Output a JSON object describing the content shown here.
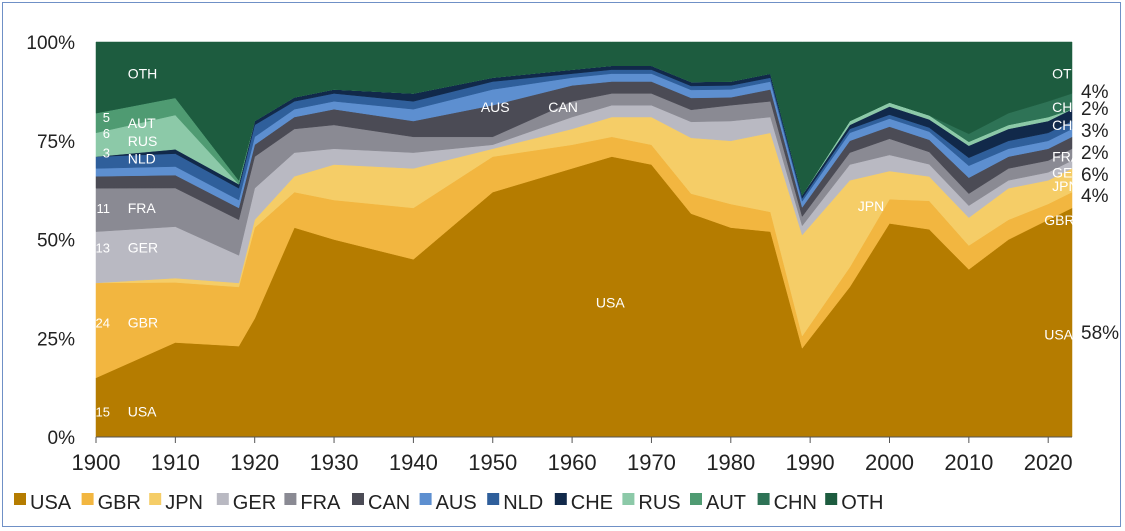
{
  "chart_data": {
    "type": "area",
    "stacked": "percent",
    "title": "",
    "xlabel": "",
    "ylabel": "",
    "xlim": [
      1900,
      2023
    ],
    "ylim": [
      0,
      100
    ],
    "x_ticks": [
      1900,
      1910,
      1920,
      1930,
      1940,
      1950,
      1960,
      1970,
      1980,
      1990,
      2000,
      2010,
      2020
    ],
    "y_ticks": [
      "0%",
      "25%",
      "50%",
      "75%",
      "100%"
    ],
    "grid": false,
    "legend_position": "bottom",
    "x": [
      1900,
      1910,
      1918,
      1920,
      1925,
      1930,
      1940,
      1950,
      1960,
      1965,
      1970,
      1975,
      1980,
      1985,
      1989,
      1995,
      2000,
      2005,
      2010,
      2015,
      2020,
      2023
    ],
    "series": [
      {
        "name": "USA",
        "color": "#b57c00",
        "values": [
          15,
          22,
          23,
          30,
          53,
          50,
          45,
          62,
          68,
          71,
          69,
          56,
          53,
          52,
          29,
          38,
          53,
          51,
          42,
          50,
          55,
          58
        ]
      },
      {
        "name": "GBR",
        "color": "#f2b640",
        "values": [
          24,
          14,
          15,
          23,
          9,
          10,
          13,
          9,
          6,
          5,
          5,
          5,
          6,
          5,
          4,
          5,
          6,
          7,
          6,
          5,
          4,
          4
        ]
      },
      {
        "name": "JPN",
        "color": "#f5cd67",
        "values": [
          0,
          1,
          1,
          2,
          4,
          9,
          10,
          2,
          4,
          5,
          7,
          14,
          16,
          20,
          33,
          22,
          7,
          6,
          7,
          8,
          6,
          6
        ]
      },
      {
        "name": "GER",
        "color": "#b9b9c2",
        "values": [
          13,
          12,
          7,
          8,
          6,
          4,
          4,
          1,
          3,
          3,
          3,
          4,
          5,
          4,
          3,
          4,
          4,
          3,
          3,
          2,
          2,
          2
        ]
      },
      {
        "name": "FRA",
        "color": "#8a8a93",
        "values": [
          11,
          9,
          9,
          8,
          6,
          6,
          4,
          2,
          4,
          3,
          3,
          3,
          4,
          4,
          3,
          3,
          4,
          3,
          3,
          3,
          3,
          3
        ]
      },
      {
        "name": "CAN",
        "color": "#4b4b55",
        "values": [
          3,
          3,
          3,
          3,
          3,
          4,
          4,
          8,
          4,
          3,
          3,
          3,
          2,
          3,
          3,
          3,
          3,
          3,
          4,
          3,
          3,
          3
        ]
      },
      {
        "name": "AUS",
        "color": "#5d8fd0",
        "values": [
          2,
          2,
          2,
          2,
          2,
          2,
          3,
          4,
          2,
          2,
          2,
          2,
          2,
          2,
          2,
          2,
          2,
          2,
          3,
          2,
          2,
          2
        ]
      },
      {
        "name": "NLD",
        "color": "#2f5f9b",
        "values": [
          3,
          3,
          3,
          3,
          2,
          2,
          2,
          2,
          1,
          1,
          1,
          1,
          1,
          1,
          1,
          1,
          1,
          1,
          2,
          2,
          2,
          2
        ]
      },
      {
        "name": "CHE",
        "color": "#11294a",
        "values": [
          0,
          1,
          1,
          1,
          1,
          1,
          2,
          1,
          1,
          1,
          1,
          1,
          1,
          1,
          1,
          1,
          2,
          2,
          3,
          3,
          3,
          3
        ]
      },
      {
        "name": "RUS",
        "color": "#8cc9a8",
        "values": [
          6,
          8,
          0,
          0,
          0,
          0,
          0,
          0,
          0,
          0,
          0,
          0,
          0,
          0,
          0,
          1,
          1,
          1,
          1,
          1,
          1,
          0
        ]
      },
      {
        "name": "AUT",
        "color": "#4f9b72",
        "values": [
          5,
          4,
          1,
          0,
          0,
          0,
          0,
          0,
          0,
          0,
          0,
          0,
          0,
          0,
          0,
          0,
          0,
          0,
          0,
          0,
          0,
          0
        ]
      },
      {
        "name": "CHN",
        "color": "#2e7356",
        "values": [
          0,
          0,
          0,
          0,
          0,
          0,
          0,
          0,
          0,
          0,
          0,
          0,
          0,
          0,
          0,
          0,
          0,
          0,
          2,
          3,
          4,
          4
        ]
      },
      {
        "name": "OTH",
        "color": "#1d5c3f",
        "values": [
          18,
          13,
          35,
          20,
          14,
          12,
          13,
          9,
          7,
          6,
          6,
          10,
          10,
          8,
          50,
          20,
          15,
          18,
          23,
          18,
          15,
          13
        ]
      }
    ],
    "area_labels": [
      {
        "series": "OTH",
        "text": "OTH",
        "x": 1904,
        "y": 92,
        "color": "#ffffff"
      },
      {
        "series": "AUT",
        "text": "AUT",
        "x": 1904,
        "y": 79.5,
        "color": "#ffffff"
      },
      {
        "series": "RUS",
        "text": "RUS",
        "x": 1904,
        "y": 75,
        "color": "#ffffff"
      },
      {
        "series": "NLD",
        "text": "NLD",
        "x": 1904,
        "y": 70.5,
        "color": "#ffffff"
      },
      {
        "series": "FRA",
        "text": "FRA",
        "x": 1904,
        "y": 58,
        "color": "#ffffff"
      },
      {
        "series": "GER",
        "text": "GER",
        "x": 1904,
        "y": 48,
        "color": "#ffffff"
      },
      {
        "series": "GBR",
        "text": "GBR",
        "x": 1904,
        "y": 29,
        "color": "#ffffff"
      },
      {
        "series": "USA",
        "text": "USA",
        "x": 1904,
        "y": 6.5,
        "color": "#ffffff"
      },
      {
        "series": "AUS",
        "text": "AUS",
        "x": 1948.5,
        "y": 83.5,
        "color": "#ffffff"
      },
      {
        "series": "CAN",
        "text": "CAN",
        "x": 1957,
        "y": 83.5,
        "color": "#ffffff"
      },
      {
        "series": "USA",
        "text": "USA",
        "x": 1963,
        "y": 34,
        "color": "#ffffff"
      },
      {
        "series": "JPN",
        "text": "JPN",
        "x": 1996,
        "y": 58.5,
        "color": "#ffffff"
      },
      {
        "series": "OTH",
        "text": "OTH",
        "x": 2020.5,
        "y": 92,
        "color": "#ffffff"
      },
      {
        "series": "CHN",
        "text": "CHN",
        "x": 2020.5,
        "y": 83.5,
        "color": "#ffffff"
      },
      {
        "series": "CHE",
        "text": "CHE",
        "x": 2020.5,
        "y": 79,
        "color": "#ffffff"
      },
      {
        "series": "FRA",
        "text": "FRA",
        "x": 2020.5,
        "y": 71,
        "color": "#ffffff"
      },
      {
        "series": "GER",
        "text": "GER",
        "x": 2020.5,
        "y": 67,
        "color": "#ffffff"
      },
      {
        "series": "JPN",
        "text": "JPN",
        "x": 2020.5,
        "y": 63.5,
        "color": "#ffffff"
      },
      {
        "series": "GBR",
        "text": "GBR",
        "x": 2019.5,
        "y": 55,
        "color": "#ffffff"
      },
      {
        "series": "USA",
        "text": "USA",
        "x": 2019.5,
        "y": 26,
        "color": "#ffffff"
      }
    ],
    "start_value_labels": [
      {
        "text": "5",
        "y": 81
      },
      {
        "text": "6",
        "y": 77
      },
      {
        "text": "3",
        "y": 72
      },
      {
        "text": "11",
        "y": 58
      },
      {
        "text": "13",
        "y": 48
      },
      {
        "text": "24",
        "y": 29
      },
      {
        "text": "15",
        "y": 6.5
      }
    ],
    "end_value_labels": [
      "4%",
      "2%",
      "3%",
      "2%",
      "6%",
      "4%",
      "58%"
    ],
    "legend": [
      "USA",
      "GBR",
      "JPN",
      "GER",
      "FRA",
      "CAN",
      "AUS",
      "NLD",
      "CHE",
      "RUS",
      "AUT",
      "CHN",
      "OTH"
    ]
  }
}
